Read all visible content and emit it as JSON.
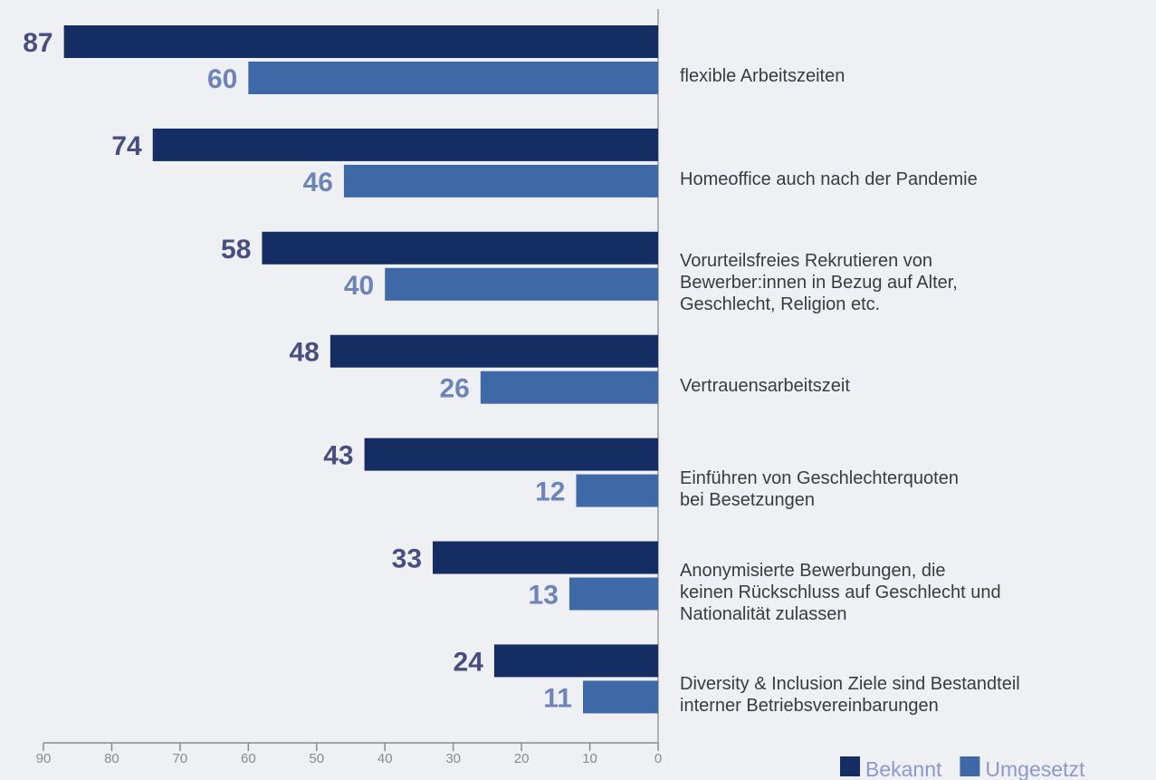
{
  "chart_data": {
    "type": "bar",
    "orientation": "horizontal",
    "x_reversed": true,
    "categories": [
      "flexible Arbeitszeiten",
      "Homeoffice auch nach der Pandemie",
      "Vorurteilsfreies Rekrutieren von\nBewerber:innen in Bezug auf Alter,\nGeschlecht, Religion etc.",
      "Vertrauensarbeitszeit",
      "Einführen von Geschlechterquoten\nbei Besetzungen",
      "Anonymisierte Bewerbungen, die\nkeinen Rückschluss auf Geschlecht und\nNationalität zulassen",
      "Diversity & Inclusion Ziele sind Bestandteil\ninterner Betriebsvereinbarungen"
    ],
    "series": [
      {
        "name": "Bekannt",
        "color": "#142d62",
        "label_color": "#484e7e",
        "values": [
          87,
          74,
          58,
          48,
          43,
          33,
          24
        ]
      },
      {
        "name": "Umgesetzt",
        "color": "#3e69a6",
        "label_color": "#6d84b7",
        "values": [
          60,
          46,
          40,
          26,
          12,
          13,
          11
        ]
      }
    ],
    "xlim": [
      0,
      90
    ],
    "xticks": [
      90,
      80,
      70,
      60,
      50,
      40,
      30,
      20,
      10,
      0
    ],
    "legend": "bottom-right"
  }
}
